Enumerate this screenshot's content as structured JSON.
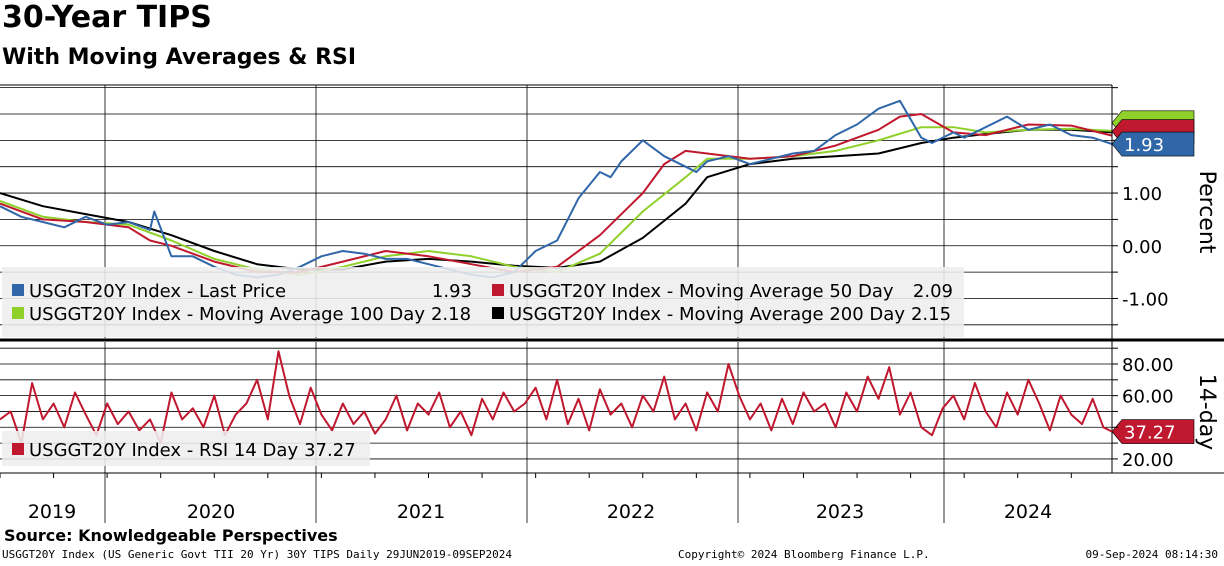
{
  "header": {
    "title": "30-Year TIPS",
    "subtitle": "With Moving Averages & RSI"
  },
  "footer": {
    "source": "Source: Knowledgeable Perspectives",
    "description": "USGGT20Y Index (US Generic Govt TII 20 Yr) 30Y TIPS  Daily 29JUN2019-09SEP2024",
    "copyright": "Copyright© 2024 Bloomberg Finance L.P.",
    "timestamp": "09-Sep-2024 08:14:30"
  },
  "colors": {
    "last_price": "#2f67a8",
    "ma50": "#c0182f",
    "ma100": "#8fd12a",
    "ma200": "#000000",
    "rsi": "#c0182f"
  },
  "chart_data": [
    {
      "type": "line",
      "panel": "price",
      "ylabel": "Percent",
      "ylim": [
        -1.75,
        3.05
      ],
      "yticks": [
        -1.0,
        0.0,
        1.0
      ],
      "ytick_labels": [
        "-1.00",
        "0.00",
        "1.00"
      ],
      "x_range": [
        2019.5,
        2024.69
      ],
      "year_labels": [
        "2019",
        "2020",
        "2021",
        "2022",
        "2023",
        "2024"
      ],
      "current_value_label": "1.93",
      "series": [
        {
          "name": "USGGT20Y Index - Last Price",
          "color_key": "last_price",
          "last_value": "1.93",
          "x": [
            2019.5,
            2019.6,
            2019.7,
            2019.8,
            2019.9,
            2020.0,
            2020.1,
            2020.2,
            2020.22,
            2020.3,
            2020.4,
            2020.5,
            2020.6,
            2020.7,
            2020.8,
            2020.9,
            2021.0,
            2021.1,
            2021.2,
            2021.3,
            2021.4,
            2021.5,
            2021.6,
            2021.7,
            2021.8,
            2021.9,
            2022.0,
            2022.1,
            2022.15,
            2022.2,
            2022.3,
            2022.35,
            2022.4,
            2022.5,
            2022.6,
            2022.7,
            2022.75,
            2022.8,
            2022.9,
            2023.0,
            2023.1,
            2023.2,
            2023.3,
            2023.4,
            2023.5,
            2023.6,
            2023.7,
            2023.75,
            2023.8,
            2023.85,
            2023.95,
            2024.0,
            2024.1,
            2024.2,
            2024.3,
            2024.4,
            2024.5,
            2024.6,
            2024.69
          ],
          "values": [
            0.75,
            0.55,
            0.45,
            0.35,
            0.55,
            0.4,
            0.45,
            0.3,
            0.65,
            -0.2,
            -0.2,
            -0.4,
            -0.55,
            -0.6,
            -0.55,
            -0.4,
            -0.2,
            -0.1,
            -0.15,
            -0.25,
            -0.25,
            -0.35,
            -0.45,
            -0.55,
            -0.6,
            -0.5,
            -0.1,
            0.1,
            0.5,
            0.9,
            1.4,
            1.3,
            1.6,
            2.0,
            1.7,
            1.5,
            1.4,
            1.6,
            1.7,
            1.55,
            1.65,
            1.75,
            1.8,
            2.1,
            2.3,
            2.6,
            2.75,
            2.4,
            2.05,
            1.95,
            2.15,
            2.05,
            2.25,
            2.45,
            2.2,
            2.3,
            2.1,
            2.05,
            1.93
          ]
        },
        {
          "name": "USGGT20Y Index - Moving Average 50 Day",
          "color_key": "ma50",
          "last_value": "2.09",
          "x": [
            2019.5,
            2019.7,
            2019.9,
            2020.1,
            2020.2,
            2020.3,
            2020.5,
            2020.7,
            2020.9,
            2021.1,
            2021.3,
            2021.5,
            2021.7,
            2021.9,
            2022.1,
            2022.3,
            2022.5,
            2022.6,
            2022.7,
            2022.8,
            2023.0,
            2023.2,
            2023.4,
            2023.6,
            2023.7,
            2023.8,
            2023.95,
            2024.1,
            2024.3,
            2024.5,
            2024.69
          ],
          "values": [
            0.8,
            0.5,
            0.45,
            0.35,
            0.1,
            0.0,
            -0.3,
            -0.5,
            -0.5,
            -0.3,
            -0.1,
            -0.2,
            -0.35,
            -0.5,
            -0.4,
            0.2,
            1.0,
            1.55,
            1.8,
            1.75,
            1.65,
            1.7,
            1.9,
            2.2,
            2.45,
            2.5,
            2.15,
            2.1,
            2.3,
            2.28,
            2.09
          ]
        },
        {
          "name": "USGGT20Y Index - Moving Average 100 Day",
          "color_key": "ma100",
          "last_value": "2.18",
          "x": [
            2019.5,
            2019.7,
            2019.9,
            2020.1,
            2020.3,
            2020.5,
            2020.7,
            2020.9,
            2021.1,
            2021.3,
            2021.5,
            2021.7,
            2021.9,
            2022.1,
            2022.3,
            2022.5,
            2022.7,
            2022.8,
            2023.0,
            2023.2,
            2023.4,
            2023.6,
            2023.8,
            2023.95,
            2024.1,
            2024.3,
            2024.5,
            2024.69
          ],
          "values": [
            0.85,
            0.55,
            0.45,
            0.4,
            0.1,
            -0.25,
            -0.45,
            -0.55,
            -0.4,
            -0.2,
            -0.1,
            -0.2,
            -0.4,
            -0.5,
            -0.15,
            0.65,
            1.3,
            1.65,
            1.65,
            1.7,
            1.8,
            2.0,
            2.25,
            2.25,
            2.15,
            2.2,
            2.22,
            2.18
          ]
        },
        {
          "name": "USGGT20Y Index - Moving Average 200 Day",
          "color_key": "ma200",
          "last_value": "2.15",
          "x": [
            2019.5,
            2019.7,
            2019.9,
            2020.1,
            2020.3,
            2020.5,
            2020.7,
            2020.9,
            2021.1,
            2021.3,
            2021.5,
            2021.7,
            2021.9,
            2022.1,
            2022.3,
            2022.5,
            2022.7,
            2022.8,
            2023.0,
            2023.2,
            2023.4,
            2023.6,
            2023.8,
            2023.95,
            2024.1,
            2024.3,
            2024.5,
            2024.69
          ],
          "values": [
            1.0,
            0.75,
            0.6,
            0.45,
            0.2,
            -0.1,
            -0.35,
            -0.45,
            -0.45,
            -0.3,
            -0.25,
            -0.3,
            -0.38,
            -0.42,
            -0.3,
            0.15,
            0.8,
            1.3,
            1.55,
            1.65,
            1.7,
            1.75,
            1.95,
            2.05,
            2.12,
            2.2,
            2.2,
            2.15
          ]
        }
      ]
    },
    {
      "type": "line",
      "panel": "rsi",
      "ylabel": "14-day",
      "ylim": [
        13,
        92
      ],
      "yticks": [
        20,
        40,
        60,
        80
      ],
      "ytick_labels": [
        "20.00",
        "",
        "60.00",
        "80.00"
      ],
      "current_value_label": "37.27",
      "series": [
        {
          "name": "USGGT20Y Index - RSI 14 Day",
          "color_key": "rsi",
          "last_value": "37.27",
          "x": [
            2019.5,
            2019.55,
            2019.6,
            2019.65,
            2019.7,
            2019.75,
            2019.8,
            2019.85,
            2019.9,
            2019.95,
            2020.0,
            2020.05,
            2020.1,
            2020.15,
            2020.2,
            2020.25,
            2020.3,
            2020.35,
            2020.4,
            2020.45,
            2020.5,
            2020.55,
            2020.6,
            2020.65,
            2020.7,
            2020.75,
            2020.8,
            2020.85,
            2020.9,
            2020.95,
            2021.0,
            2021.05,
            2021.1,
            2021.15,
            2021.2,
            2021.25,
            2021.3,
            2021.35,
            2021.4,
            2021.45,
            2021.5,
            2021.55,
            2021.6,
            2021.65,
            2021.7,
            2021.75,
            2021.8,
            2021.85,
            2021.9,
            2021.95,
            2022.0,
            2022.05,
            2022.1,
            2022.15,
            2022.2,
            2022.25,
            2022.3,
            2022.35,
            2022.4,
            2022.45,
            2022.5,
            2022.55,
            2022.6,
            2022.65,
            2022.7,
            2022.75,
            2022.8,
            2022.85,
            2022.9,
            2022.95,
            2023.0,
            2023.05,
            2023.1,
            2023.15,
            2023.2,
            2023.25,
            2023.3,
            2023.35,
            2023.4,
            2023.45,
            2023.5,
            2023.55,
            2023.6,
            2023.65,
            2023.7,
            2023.75,
            2023.8,
            2023.85,
            2023.9,
            2023.95,
            2024.0,
            2024.05,
            2024.1,
            2024.15,
            2024.2,
            2024.25,
            2024.3,
            2024.35,
            2024.4,
            2024.45,
            2024.5,
            2024.55,
            2024.6,
            2024.65,
            2024.69
          ],
          "values": [
            45,
            50,
            30,
            68,
            45,
            55,
            40,
            62,
            48,
            35,
            55,
            42,
            50,
            38,
            45,
            30,
            62,
            45,
            52,
            40,
            60,
            35,
            48,
            55,
            70,
            45,
            88,
            60,
            42,
            65,
            48,
            38,
            55,
            42,
            50,
            36,
            45,
            60,
            38,
            55,
            48,
            62,
            40,
            50,
            35,
            58,
            45,
            62,
            50,
            55,
            65,
            45,
            70,
            42,
            58,
            38,
            64,
            48,
            55,
            40,
            60,
            50,
            72,
            45,
            55,
            38,
            62,
            50,
            80,
            60,
            45,
            55,
            38,
            58,
            42,
            62,
            50,
            55,
            40,
            62,
            50,
            72,
            58,
            78,
            48,
            62,
            40,
            35,
            52,
            60,
            45,
            68,
            50,
            40,
            62,
            48,
            70,
            55,
            38,
            60,
            48,
            42,
            58,
            40,
            37.27
          ]
        }
      ]
    }
  ]
}
